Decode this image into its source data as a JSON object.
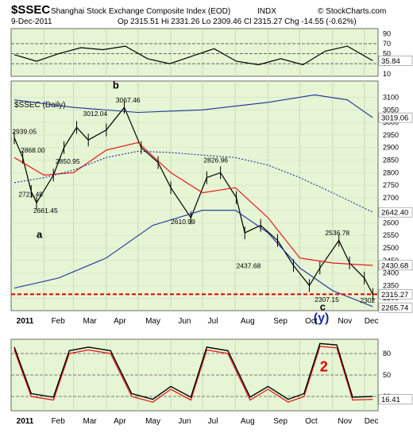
{
  "header": {
    "symbol": "$SSEC",
    "name": "Shanghai Stock Exchange Composite Index (EOD)",
    "exchange": "INDX",
    "copyright": "© StockCharts.com",
    "date": "9-Dec-2011",
    "ohlc": "Op 2315.51  Hi 2331.26  Lo 2309.46  Cl 2315.27  Chg -14.55 (-0.62%)"
  },
  "chart_data": [
    {
      "type": "line",
      "name": "top-oscillator",
      "ylim": [
        5,
        100
      ],
      "y_ticks": [
        10,
        30,
        50,
        70,
        90
      ],
      "reference_lines": [
        30,
        50,
        70
      ],
      "last_value_label": "35.84",
      "x": [
        "2011-01-04",
        "2011-01-25",
        "2011-02-15",
        "2011-03-08",
        "2011-03-29",
        "2011-04-19",
        "2011-05-10",
        "2011-05-31",
        "2011-06-21",
        "2011-07-12",
        "2011-08-02",
        "2011-08-23",
        "2011-09-13",
        "2011-10-04",
        "2011-10-25",
        "2011-11-15",
        "2011-12-09"
      ],
      "values": [
        48,
        35,
        50,
        62,
        58,
        65,
        40,
        30,
        45,
        60,
        35,
        28,
        40,
        28,
        55,
        65,
        36
      ]
    },
    {
      "type": "line",
      "name": "price-panel",
      "title": "$SSEC (Daily)",
      "ylim": [
        2250,
        3165
      ],
      "y_ticks": [
        2300,
        2350,
        2400,
        2450,
        2500,
        2550,
        2600,
        2650,
        2700,
        2750,
        2800,
        2850,
        2900,
        2950,
        3000,
        3050,
        3100
      ],
      "last_price_label": "2315.27",
      "right_labels": [
        "3019.06",
        "2642.40",
        "2430.68",
        "2265.74"
      ],
      "support_level": 2315.27,
      "annotations": [
        "2939.05",
        "2868.00",
        "2721.48",
        "2661.45",
        "2850.95",
        "3012.04",
        "3067.46",
        "2826.96",
        "2610.99",
        "2437.68",
        "2536.78",
        "2307.15",
        "2302",
        "a",
        "b",
        "c",
        "(y)",
        "2"
      ],
      "series": [
        {
          "name": "Close",
          "x": [
            "2011-01-04",
            "2011-01-12",
            "2011-01-20",
            "2011-01-25",
            "2011-02-10",
            "2011-02-20",
            "2011-03-04",
            "2011-03-15",
            "2011-04-01",
            "2011-04-18",
            "2011-05-04",
            "2011-05-20",
            "2011-06-01",
            "2011-06-20",
            "2011-07-05",
            "2011-07-18",
            "2011-08-02",
            "2011-08-10",
            "2011-08-25",
            "2011-09-10",
            "2011-09-25",
            "2011-10-10",
            "2011-10-20",
            "2011-11-07",
            "2011-11-17",
            "2011-12-01",
            "2011-12-09"
          ],
          "values": [
            2939,
            2860,
            2725,
            2680,
            2790,
            2900,
            2980,
            2930,
            2970,
            3060,
            2900,
            2840,
            2740,
            2620,
            2780,
            2800,
            2700,
            2560,
            2590,
            2530,
            2430,
            2350,
            2420,
            2530,
            2440,
            2380,
            2315
          ]
        },
        {
          "name": "Short MA",
          "x": [
            "2011-01-04",
            "2011-02-01",
            "2011-03-01",
            "2011-04-01",
            "2011-05-01",
            "2011-06-01",
            "2011-07-01",
            "2011-08-01",
            "2011-09-01",
            "2011-10-01",
            "2011-11-01",
            "2011-12-09"
          ],
          "values": [
            2860,
            2790,
            2800,
            2890,
            2920,
            2800,
            2720,
            2740,
            2620,
            2460,
            2440,
            2430
          ]
        },
        {
          "name": "Mid MA",
          "x": [
            "2011-01-04",
            "2011-02-01",
            "2011-03-01",
            "2011-04-01",
            "2011-05-01",
            "2011-06-01",
            "2011-07-01",
            "2011-08-01",
            "2011-09-01",
            "2011-10-01",
            "2011-11-01",
            "2011-12-09"
          ],
          "values": [
            2760,
            2780,
            2810,
            2860,
            2885,
            2880,
            2870,
            2860,
            2830,
            2780,
            2720,
            2642
          ]
        },
        {
          "name": "Long MA",
          "x": [
            "2011-01-04",
            "2011-03-01",
            "2011-05-01",
            "2011-07-01",
            "2011-09-01",
            "2011-10-15",
            "2011-11-15",
            "2011-12-09"
          ],
          "values": [
            3090,
            3060,
            3040,
            3050,
            3080,
            3110,
            3090,
            3019
          ]
        },
        {
          "name": "Lower Band",
          "x": [
            "2011-01-04",
            "2011-02-15",
            "2011-04-01",
            "2011-05-15",
            "2011-07-01",
            "2011-08-01",
            "2011-09-01",
            "2011-10-01",
            "2011-11-01",
            "2011-12-09"
          ],
          "values": [
            2340,
            2380,
            2460,
            2590,
            2650,
            2650,
            2560,
            2420,
            2330,
            2266
          ]
        }
      ]
    },
    {
      "type": "line",
      "name": "bottom-oscillator",
      "ylim": [
        0,
        100
      ],
      "y_ticks": [
        20,
        50,
        80
      ],
      "reference_lines": [
        20,
        50,
        80
      ],
      "last_value_label": "16.41",
      "x": [
        "2011-01-04",
        "2011-01-20",
        "2011-02-10",
        "2011-02-25",
        "2011-03-15",
        "2011-04-05",
        "2011-04-25",
        "2011-05-15",
        "2011-06-01",
        "2011-06-20",
        "2011-07-05",
        "2011-07-25",
        "2011-08-15",
        "2011-09-01",
        "2011-09-20",
        "2011-10-05",
        "2011-10-20",
        "2011-11-05",
        "2011-11-20",
        "2011-12-09"
      ],
      "values": [
        85,
        20,
        15,
        80,
        85,
        80,
        20,
        12,
        30,
        15,
        85,
        80,
        15,
        30,
        12,
        20,
        90,
        88,
        15,
        16
      ]
    }
  ],
  "x_axis": {
    "labels": [
      "2011",
      "Feb",
      "Mar",
      "Apr",
      "May",
      "Jun",
      "Jul",
      "Aug",
      "Sep",
      "Oct",
      "Nov",
      "Dec"
    ]
  }
}
